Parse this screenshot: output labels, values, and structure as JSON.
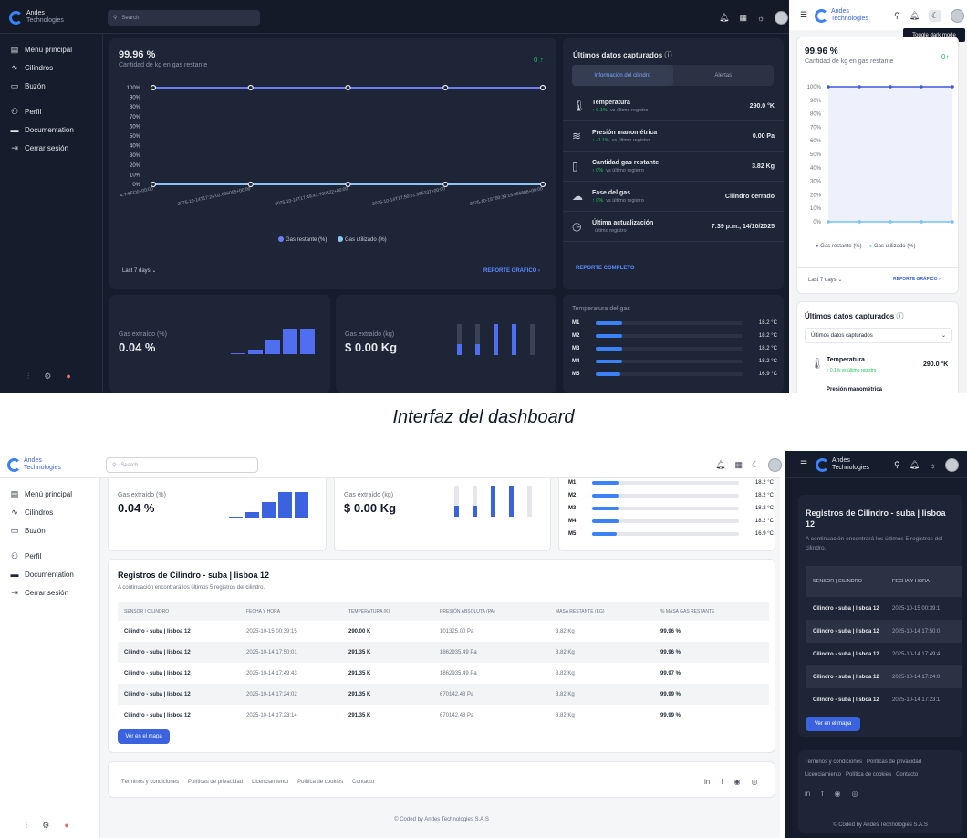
{
  "brand": {
    "name_line1": "Andes",
    "name_line2": "Technologies"
  },
  "search": {
    "placeholder": "Search"
  },
  "nav": [
    {
      "label": "Menú principal",
      "icon": "home-icon"
    },
    {
      "label": "Cilindros",
      "icon": "activity-icon"
    },
    {
      "label": "Buzón",
      "icon": "inbox-icon"
    },
    {
      "label": "Perfil",
      "icon": "user-icon"
    },
    {
      "label": "Documentation",
      "icon": "folder-icon"
    },
    {
      "label": "Cerrar sesión",
      "icon": "logout-icon"
    }
  ],
  "tooltip": "Toggle dark mode",
  "caption": "Interfaz del dashboard",
  "main_chart": {
    "value": "99.96 %",
    "subtitle": "Cantidad de kg en gas restante",
    "delta": "0",
    "range": "Last 7 days",
    "report": "REPORTE GRÁFICO",
    "legend": [
      "Gas restante (%)",
      "Gas utilizado (%)"
    ]
  },
  "chart_data": {
    "type": "line",
    "x": [
      "4:7:6EO0+00:00",
      "2025-10-14T17:24:02.806055+00:00",
      "2025-10-14T17:49:43.730522+00:00",
      "2025-10-14T17:50:01.955337+00:00",
      "2025-10-15T00:39:15.056806+00:00"
    ],
    "series": [
      {
        "name": "Gas restante (%)",
        "values": [
          100,
          100,
          100,
          100,
          100
        ],
        "color": "#6b7ff0"
      },
      {
        "name": "Gas utilizado (%)",
        "values": [
          0,
          0,
          0,
          0,
          0
        ],
        "color": "#8ec5f5"
      }
    ],
    "yticks": [
      "100%",
      "90%",
      "80%",
      "70%",
      "60%",
      "50%",
      "40%",
      "30%",
      "20%",
      "10%",
      "0%"
    ],
    "ylim": [
      0,
      100
    ]
  },
  "captured": {
    "title": "Últimos datos capturados",
    "tab1": "Información del cilindro",
    "tab2": "Alertas",
    "report": "REPORTE COMPLETO",
    "rows": [
      {
        "icon": "thermometer-icon",
        "label": "Temperatura",
        "sub": "↑ 0.1%",
        "sub2": "vs último registro",
        "value": "290.0 °K"
      },
      {
        "icon": "wind-icon",
        "label": "Presión manométrica",
        "sub": "↑ -0.1%",
        "sub2": "vs último registro",
        "value": "0.00 Pa"
      },
      {
        "icon": "cylinder-icon",
        "label": "Cantidad gas restante",
        "sub": "↑ 0%",
        "sub2": "vs último registro",
        "value": "3.82 Kg"
      },
      {
        "icon": "phase-icon",
        "label": "Fase del gas",
        "sub": "↑ 0%",
        "sub2": "vs último registro",
        "value": "Cilindro cerrado"
      },
      {
        "icon": "clock-icon",
        "label": "Última actualización",
        "sub": "",
        "sub2": "último registro",
        "value": "7:39 p.m., 14/10/2025"
      }
    ]
  },
  "gas_pct": {
    "label": "Gas extraído (%)",
    "value": "0.04 %"
  },
  "gas_kg": {
    "label": "Gas extraído (kg)",
    "value": "$ 0.00 Kg"
  },
  "temp": {
    "title": "Temperatura del gas",
    "rows": [
      {
        "name": "M1",
        "value": "18.2 °C",
        "level": 0.18
      },
      {
        "name": "M2",
        "value": "18.2 °C",
        "level": 0.18
      },
      {
        "name": "M3",
        "value": "18.2 °C",
        "level": 0.18
      },
      {
        "name": "M4",
        "value": "18.2 °C",
        "level": 0.18
      },
      {
        "name": "M5",
        "value": "16.9 °C",
        "level": 0.17
      }
    ]
  },
  "mobile": {
    "value": "99.96 %",
    "subtitle": "Cantidad de kg en gas restante",
    "delta": "0",
    "range": "Last 7 days",
    "report": "REPORTE GRÁFICO",
    "legend": [
      "Gas restante (%)",
      "Gas utilizado (%)"
    ],
    "captured_title": "Últimos datos capturados",
    "select": "Últimos datos capturados",
    "temp_label": "Temperatura",
    "temp_sub": "↑ 0.1%  vs último registro",
    "temp_value": "290.0 °K",
    "next_label": "Presión manométrica"
  },
  "records": {
    "title": "Registros de Cilindro - suba | lisboa 12",
    "desc": "A continuación encontrará los últimos 5 registros del cilindro.",
    "headers": [
      "SENSOR | CILINDRO",
      "FECHA Y HORA",
      "TEMPERATURA (K)",
      "PRESIÓN ABSOLUTA (PA)",
      "MASA RESTANTE (KG)",
      "% MASA GAS RESTANTE"
    ],
    "rows": [
      [
        "Cilindro - suba | lisboa 12",
        "2025-10-15 00:39:15",
        "290.00 K",
        "101325.00 Pa",
        "3.82 Kg",
        "99.96 %"
      ],
      [
        "Cilindro - suba | lisboa 12",
        "2025-10-14 17:50:01",
        "291.35 K",
        "1862935.49 Pa",
        "3.82 Kg",
        "99.96 %"
      ],
      [
        "Cilindro - suba | lisboa 12",
        "2025-10-14 17:49:43",
        "291.35 K",
        "1862935.49 Pa",
        "3.82 Kg",
        "99.97 %"
      ],
      [
        "Cilindro - suba | lisboa 12",
        "2025-10-14 17:24:02",
        "291.35 K",
        "670142.48 Pa",
        "3.82 Kg",
        "99.99 %"
      ],
      [
        "Cilindro - suba | lisboa 12",
        "2025-10-14 17:23:14",
        "291.35 K",
        "670142.48 Pa",
        "3.82 Kg",
        "99.99 %"
      ]
    ],
    "map_button": "Ver en el mapa"
  },
  "mobile_records": {
    "title": "Registros de Cilindro - suba | lisboa 12",
    "desc": "A continuación encontrará los últimos 5 registros del cilindro.",
    "headers": [
      "SENSOR | CILINDRO",
      "FECHA Y HORA"
    ],
    "rows": [
      [
        "Cilindro - suba | lisboa 12",
        "2025-10-15 00:39:1"
      ],
      [
        "Cilindro - suba | lisboa 12",
        "2025-10-14 17:50:0"
      ],
      [
        "Cilindro - suba | lisboa 12",
        "2025-10-14 17:49:4"
      ],
      [
        "Cilindro - suba | lisboa 12",
        "2025-10-14 17:24:0"
      ],
      [
        "Cilindro - suba | lisboa 12",
        "2025-10-14 17:23:1"
      ]
    ],
    "map_button": "Ver en el mapa"
  },
  "footer": {
    "links": [
      "Términos y condiciones",
      "Políticas de privacidad",
      "Licenciamiento",
      "Política de cookies",
      "Contacto"
    ],
    "credit": "© Coded by Andes Technologies S.A.S"
  },
  "mobile_footer": {
    "l1": "Términos y condiciones",
    "l2": "Políticas de privacidad",
    "l3": "Licenciamiento",
    "l4": "Política de cookies",
    "l5": "Contacto",
    "credit": "© Coded by Andes Technologies S.A.S"
  },
  "colors": {
    "accent": "#3b63e0",
    "dark_bg": "#151c2c",
    "card_dark": "#1e2536",
    "green": "#22c55e"
  }
}
